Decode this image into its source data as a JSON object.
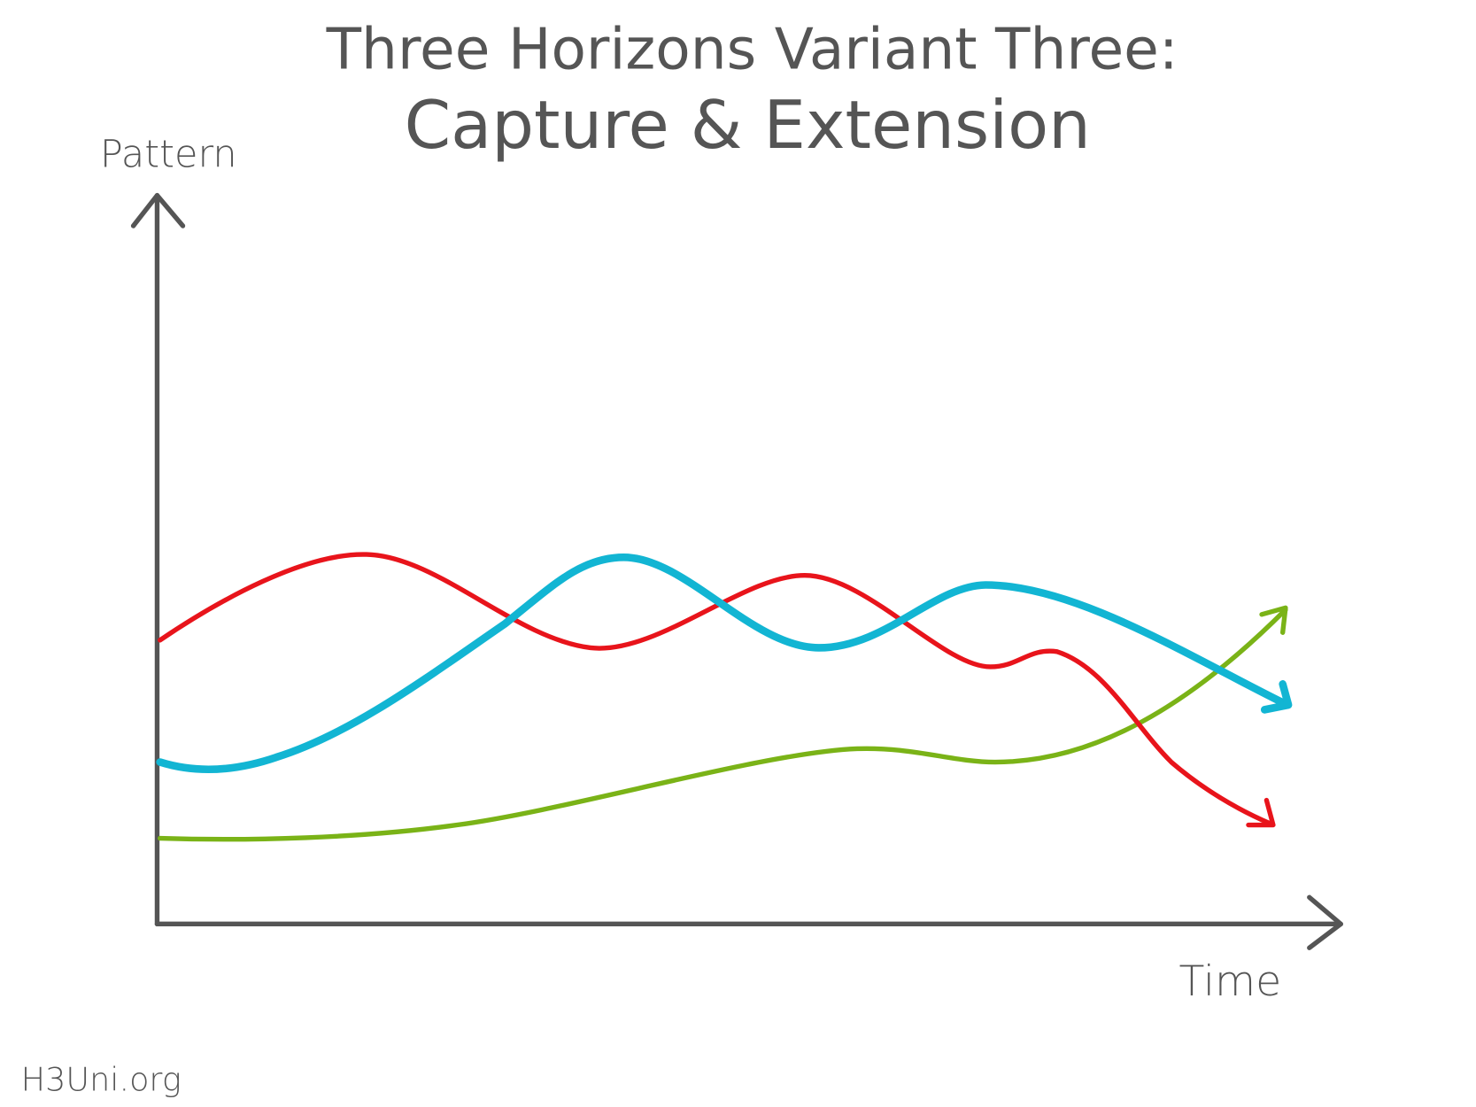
{
  "header": {
    "title_line1": "Three Horizons Variant Three:",
    "title_line2": "Capture & Extension"
  },
  "axes": {
    "y_label": "Pattern",
    "x_label": "Time"
  },
  "footer": {
    "source": "H3Uni.org"
  }
}
